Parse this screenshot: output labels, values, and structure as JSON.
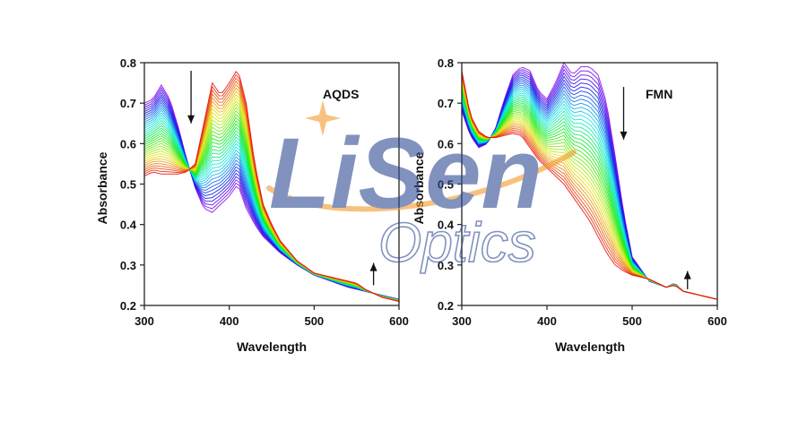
{
  "watermark": {
    "brand_name": "LiSen",
    "brand_sub": "Optics",
    "colors": {
      "primary": "#2f4a93",
      "accent": "#f39a2a"
    }
  },
  "chart_data": [
    {
      "type": "line",
      "title": "",
      "annotation": "AQDS",
      "xlabel": "Wavelength",
      "ylabel": "Absorbance",
      "xlim": [
        300,
        600
      ],
      "ylim": [
        0.2,
        0.8
      ],
      "xticks": [
        "300",
        "400",
        "500",
        "600"
      ],
      "yticks": [
        "0.2",
        "0.3",
        "0.4",
        "0.5",
        "0.6",
        "0.7",
        "0.8"
      ],
      "grid": false,
      "legend": "none",
      "spectra_count": 36,
      "color_order": "violet-to-red",
      "series": [
        {
          "label_role": "first (violet)",
          "x": [
            300,
            310,
            320,
            330,
            340,
            350,
            360,
            370,
            380,
            390,
            400,
            410,
            420,
            430,
            440,
            450,
            460,
            480,
            500,
            520,
            540,
            550,
            560,
            580,
            600
          ],
          "y": [
            0.7,
            0.71,
            0.745,
            0.71,
            0.64,
            0.56,
            0.49,
            0.44,
            0.43,
            0.45,
            0.47,
            0.5,
            0.44,
            0.4,
            0.37,
            0.35,
            0.33,
            0.3,
            0.275,
            0.26,
            0.245,
            0.24,
            0.235,
            0.225,
            0.215
          ]
        },
        {
          "label_role": "last (red)",
          "x": [
            300,
            310,
            320,
            330,
            340,
            350,
            360,
            370,
            380,
            390,
            400,
            410,
            420,
            430,
            440,
            450,
            460,
            480,
            500,
            520,
            540,
            550,
            560,
            580,
            600
          ],
          "y": [
            0.52,
            0.53,
            0.525,
            0.525,
            0.525,
            0.53,
            0.55,
            0.65,
            0.75,
            0.72,
            0.75,
            0.785,
            0.7,
            0.55,
            0.45,
            0.4,
            0.36,
            0.31,
            0.28,
            0.27,
            0.26,
            0.255,
            0.24,
            0.22,
            0.21
          ]
        }
      ],
      "arrows": [
        {
          "direction": "down",
          "x": 355,
          "y_from": 0.78,
          "y_to": 0.65
        },
        {
          "direction": "up",
          "x": 570,
          "y_from": 0.25,
          "y_to": 0.305
        }
      ]
    },
    {
      "type": "line",
      "title": "",
      "annotation": "FMN",
      "xlabel": "Wavelength",
      "ylabel": "Absorbance",
      "xlim": [
        300,
        600
      ],
      "ylim": [
        0.2,
        0.8
      ],
      "xticks": [
        "300",
        "400",
        "500",
        "600"
      ],
      "yticks": [
        "0.2",
        "0.3",
        "0.4",
        "0.5",
        "0.6",
        "0.7",
        "0.8"
      ],
      "grid": false,
      "legend": "none",
      "spectra_count": 36,
      "color_order": "violet-to-red",
      "series": [
        {
          "label_role": "first (violet)",
          "x": [
            300,
            310,
            320,
            330,
            340,
            350,
            360,
            370,
            380,
            390,
            400,
            410,
            420,
            430,
            440,
            450,
            460,
            470,
            480,
            490,
            500,
            520,
            540,
            550,
            560,
            580,
            600
          ],
          "y": [
            0.68,
            0.62,
            0.59,
            0.6,
            0.64,
            0.71,
            0.77,
            0.79,
            0.78,
            0.73,
            0.71,
            0.75,
            0.8,
            0.77,
            0.79,
            0.79,
            0.77,
            0.7,
            0.57,
            0.43,
            0.32,
            0.26,
            0.245,
            0.255,
            0.235,
            0.225,
            0.215
          ]
        },
        {
          "label_role": "last (red)",
          "x": [
            300,
            310,
            320,
            330,
            340,
            350,
            360,
            370,
            380,
            390,
            400,
            410,
            420,
            430,
            440,
            450,
            460,
            470,
            480,
            490,
            500,
            520,
            540,
            550,
            560,
            580,
            600
          ],
          "y": [
            0.78,
            0.67,
            0.63,
            0.615,
            0.615,
            0.62,
            0.625,
            0.62,
            0.59,
            0.56,
            0.54,
            0.52,
            0.5,
            0.47,
            0.44,
            0.41,
            0.37,
            0.33,
            0.3,
            0.285,
            0.275,
            0.265,
            0.245,
            0.25,
            0.235,
            0.225,
            0.215
          ]
        }
      ],
      "arrows": [
        {
          "direction": "down",
          "x": 490,
          "y_from": 0.74,
          "y_to": 0.61
        },
        {
          "direction": "up",
          "x": 565,
          "y_from": 0.24,
          "y_to": 0.285
        }
      ]
    }
  ]
}
